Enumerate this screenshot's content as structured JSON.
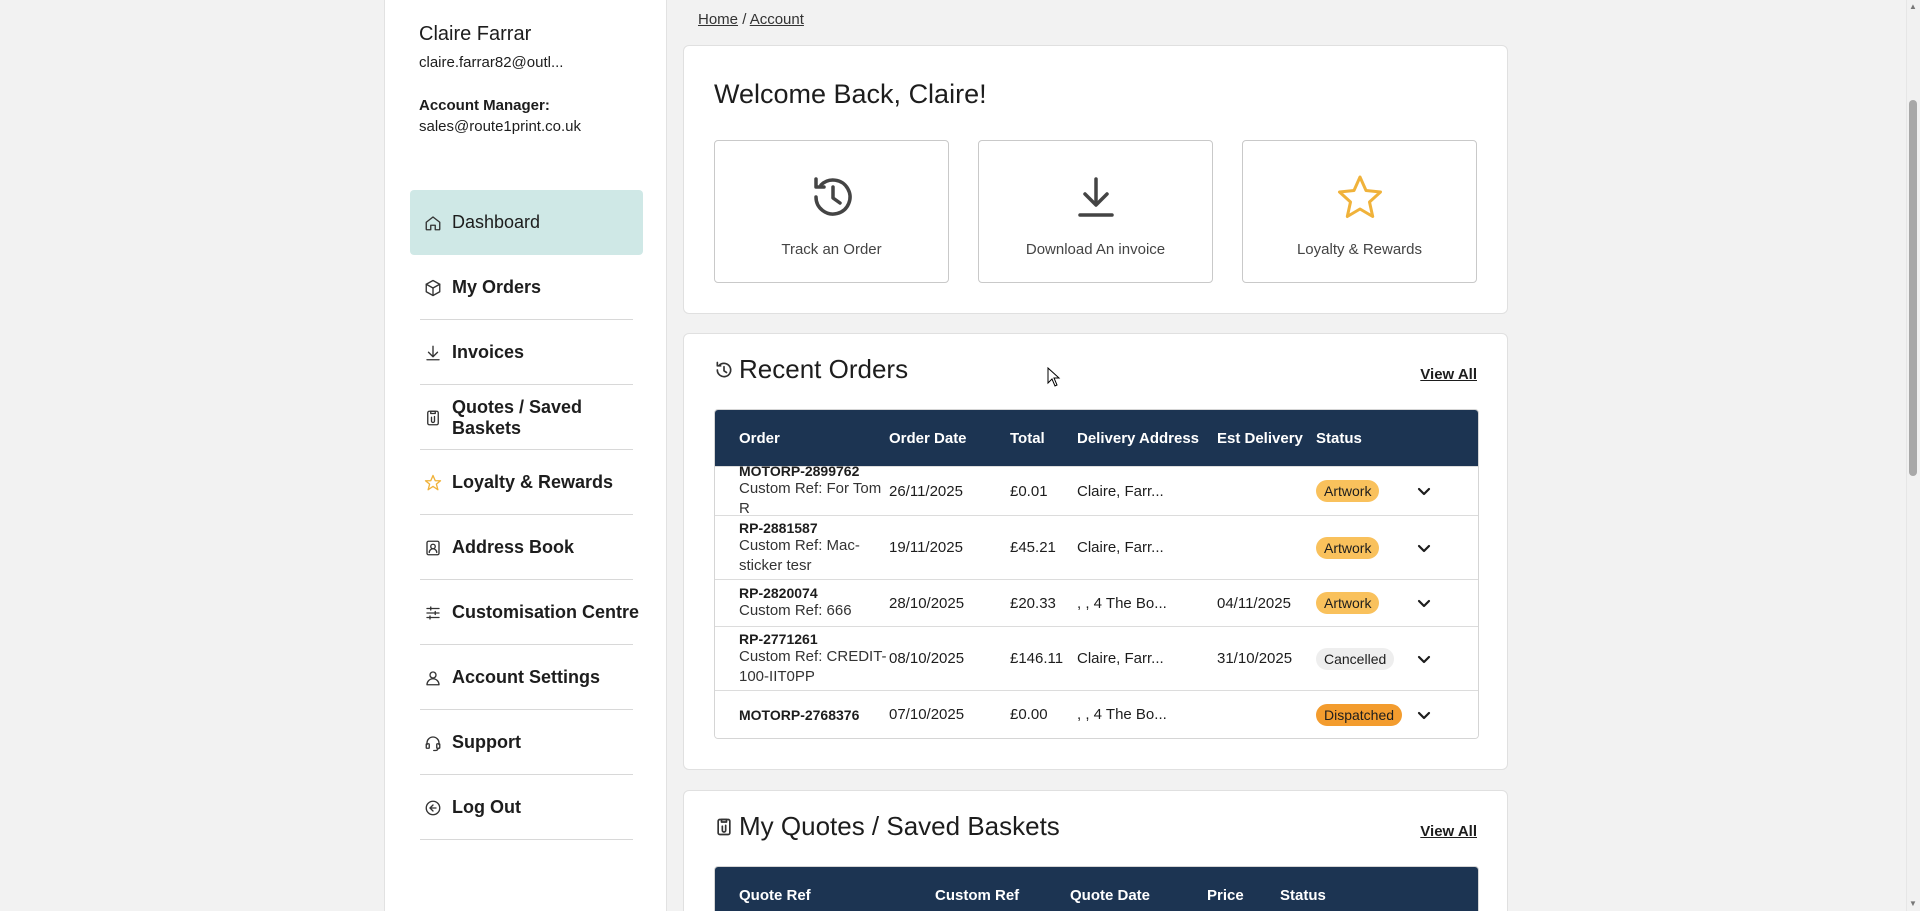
{
  "user": {
    "name": "Claire Farrar",
    "email": "claire.farrar82@outl...",
    "account_manager_label": "Account Manager:",
    "account_manager_email": "sales@route1print.co.uk"
  },
  "breadcrumb": {
    "home": "Home",
    "separator": "/",
    "current": "Account"
  },
  "sidebar": {
    "items": [
      {
        "label": "Dashboard",
        "icon": "home-icon",
        "active": true
      },
      {
        "label": "My Orders",
        "icon": "box-icon"
      },
      {
        "label": "Invoices",
        "icon": "download-icon"
      },
      {
        "label": "Quotes / Saved Baskets",
        "icon": "clipboard-icon"
      },
      {
        "label": "Loyalty & Rewards",
        "icon": "star-icon"
      },
      {
        "label": "Address Book",
        "icon": "contact-book-icon"
      },
      {
        "label": "Customisation Centre",
        "icon": "sliders-icon"
      },
      {
        "label": "Account Settings",
        "icon": "user-icon"
      },
      {
        "label": "Support",
        "icon": "headset-icon"
      },
      {
        "label": "Log Out",
        "icon": "logout-icon"
      }
    ]
  },
  "welcome": {
    "title": "Welcome Back, Claire!",
    "tiles": [
      {
        "label": "Track an Order",
        "icon": "history-icon"
      },
      {
        "label": "Download An invoice",
        "icon": "download-icon"
      },
      {
        "label": "Loyalty & Rewards",
        "icon": "star-icon"
      }
    ]
  },
  "recent_orders": {
    "title": "Recent Orders",
    "view_all": "View All",
    "columns": [
      "Order",
      "Order Date",
      "Total",
      "Delivery Address",
      "Est Delivery",
      "Status"
    ],
    "rows": [
      {
        "order": "MOTORP-2899762",
        "ref": "Custom Ref: For Tom R",
        "date": "26/11/2025",
        "total": "£0.01",
        "address": "Claire, Farr...",
        "est": "",
        "status": "Artwork"
      },
      {
        "order": "RP-2881587",
        "ref": "Custom Ref: Mac-sticker tesr",
        "date": "19/11/2025",
        "total": "£45.21",
        "address": "Claire, Farr...",
        "est": "",
        "status": "Artwork"
      },
      {
        "order": "RP-2820074",
        "ref": "Custom Ref: 666",
        "date": "28/10/2025",
        "total": "£20.33",
        "address": ", , 4 The Bo...",
        "est": "04/11/2025",
        "status": "Artwork"
      },
      {
        "order": "RP-2771261",
        "ref": "Custom Ref: CREDIT-100-IIT0PP",
        "date": "08/10/2025",
        "total": "£146.11",
        "address": "Claire, Farr...",
        "est": "31/10/2025",
        "status": "Cancelled"
      },
      {
        "order": "MOTORP-2768376",
        "ref": "",
        "date": "07/10/2025",
        "total": "£0.00",
        "address": ", , 4 The Bo...",
        "est": "",
        "status": "Dispatched"
      }
    ],
    "status_colors": {
      "Artwork": "#f9c15c",
      "Cancelled": "#eeeeee",
      "Dispatched": "#f39c2e"
    }
  },
  "quotes": {
    "title": "My Quotes / Saved Baskets",
    "view_all": "View All",
    "columns": [
      "Quote Ref",
      "Custom Ref",
      "Quote Date",
      "Price",
      "Status"
    ]
  },
  "colors": {
    "accent_active": "#cfe8e6",
    "table_header": "#1c3452",
    "star": "#f0b23a"
  }
}
